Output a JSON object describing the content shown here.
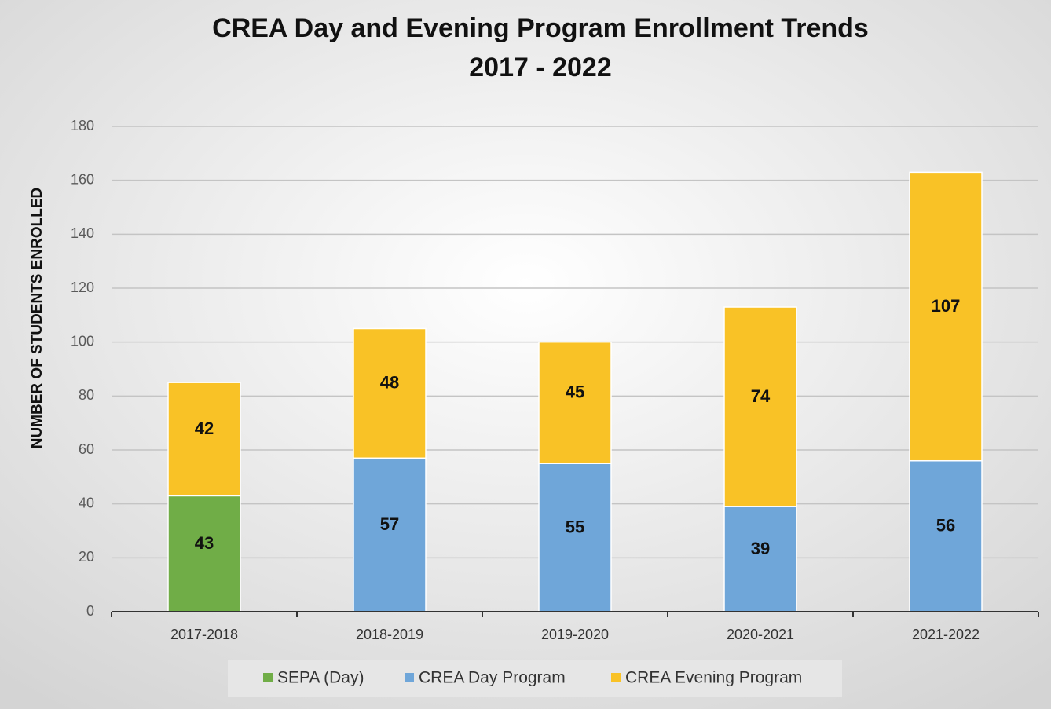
{
  "chart_data": {
    "type": "stacked_bar",
    "title": [
      "CREA Day and Evening Program Enrollment Trends",
      "2017 - 2022"
    ],
    "y_label": "NUMBER OF STUDENTS ENROLLED",
    "categories": [
      "2017-2018",
      "2018-2019",
      "2019-2020",
      "2020-2021",
      "2021-2022"
    ],
    "series": [
      {
        "name": "SEPA (Day)",
        "color": "#70ad47",
        "values": [
          43,
          null,
          null,
          null,
          null
        ]
      },
      {
        "name": "CREA Day Program",
        "color": "#6fa6d9",
        "values": [
          null,
          57,
          55,
          39,
          56
        ]
      },
      {
        "name": "CREA Evening Program",
        "color": "#f9c226",
        "values": [
          42,
          48,
          45,
          74,
          107
        ]
      }
    ],
    "ylim": [
      0,
      180
    ],
    "yticks": [
      0,
      20,
      40,
      60,
      80,
      100,
      120,
      140,
      160,
      180
    ],
    "grid": true,
    "legend": "bottom"
  }
}
